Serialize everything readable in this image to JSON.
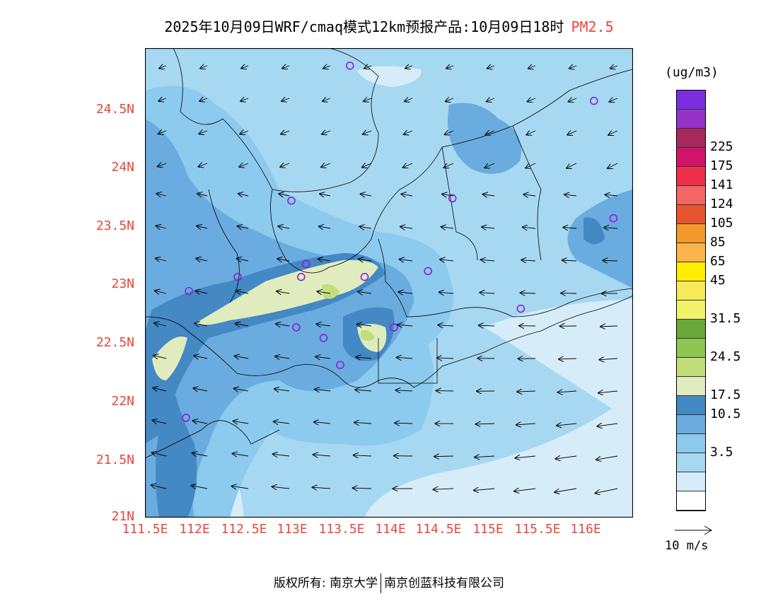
{
  "title": {
    "text": "2025年10月09日WRF/cmaq模式12km预报产品:10月09日18时",
    "variable": "PM2.5"
  },
  "axes": {
    "y_ticks": [
      "24.5N",
      "24N",
      "23.5N",
      "23N",
      "22.5N",
      "22N",
      "21.5N",
      "21N"
    ],
    "x_ticks": [
      "111.5E",
      "112E",
      "112.5E",
      "113E",
      "113.5E",
      "114E",
      "114.5E",
      "115E",
      "115.5E",
      "116E"
    ]
  },
  "legend": {
    "unit": "(ug/m3)",
    "bins": [
      {
        "color": "#ffffff"
      },
      {
        "color": "#d6ecf9"
      },
      {
        "color": "#a6d8f2",
        "label": "3.5"
      },
      {
        "color": "#8ccaee"
      },
      {
        "color": "#6aacdf",
        "label": "10.5"
      },
      {
        "color": "#4488c4",
        "label": "17.5"
      },
      {
        "color": "#e0ecbe"
      },
      {
        "color": "#c2de7a",
        "label": "24.5"
      },
      {
        "color": "#8fc552"
      },
      {
        "color": "#6aa83a",
        "label": "31.5"
      },
      {
        "color": "#f2f26a"
      },
      {
        "color": "#f7e95a",
        "label": "45"
      },
      {
        "color": "#ffee00",
        "label": "65"
      },
      {
        "color": "#fbb44a",
        "label": "85"
      },
      {
        "color": "#f49a2c",
        "label": "105"
      },
      {
        "color": "#e8542e",
        "label": "124"
      },
      {
        "color": "#f26666",
        "label": "141"
      },
      {
        "color": "#f0304a",
        "label": "175"
      },
      {
        "color": "#d0146a",
        "label": "225"
      },
      {
        "color": "#a62a5c"
      },
      {
        "color": "#9632c8"
      },
      {
        "color": "#7b2ee0"
      }
    ],
    "reference_vector": "10 m/s"
  },
  "stations": [
    [
      113.6,
      24.85
    ],
    [
      116.1,
      24.55
    ],
    [
      113.0,
      23.7
    ],
    [
      114.65,
      23.72
    ],
    [
      116.3,
      23.55
    ],
    [
      112.45,
      23.05
    ],
    [
      113.1,
      23.05
    ],
    [
      113.15,
      23.16
    ],
    [
      113.75,
      23.05
    ],
    [
      114.4,
      23.1
    ],
    [
      111.95,
      22.93
    ],
    [
      113.05,
      22.62
    ],
    [
      113.33,
      22.53
    ],
    [
      114.05,
      22.62
    ],
    [
      115.35,
      22.78
    ],
    [
      113.5,
      22.3
    ],
    [
      111.92,
      21.85
    ]
  ],
  "footer": {
    "copyright": "版权所有: 南京大学",
    "partner": "南京创蓝科技有限公司"
  }
}
